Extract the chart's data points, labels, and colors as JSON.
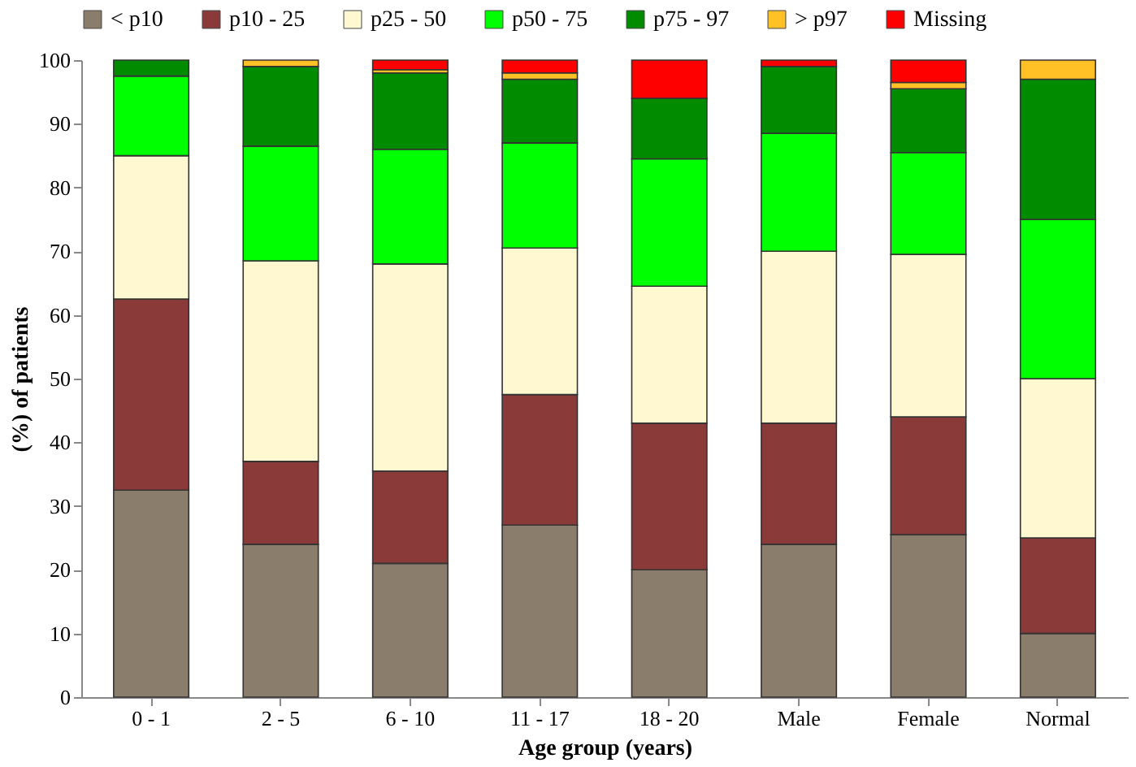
{
  "chart_data": {
    "type": "bar",
    "stacked": true,
    "xlabel": "Age group (years)",
    "ylabel": "(%) of patients",
    "categories": [
      "0 - 1",
      "2 - 5",
      "6 - 10",
      "11 - 17",
      "18 - 20",
      "Male",
      "Female",
      "Normal"
    ],
    "series": [
      {
        "name": "< p10",
        "color": "#8b7d6b",
        "values": [
          32.5,
          24,
          21,
          27,
          20,
          24,
          25.5,
          10
        ]
      },
      {
        "name": "p10 - 25",
        "color": "#8b3a3a",
        "values": [
          30,
          13,
          14.5,
          20.5,
          23,
          19,
          18.5,
          15
        ]
      },
      {
        "name": "p25 - 50",
        "color": "#fff8d0",
        "values": [
          22.5,
          31.5,
          32.5,
          23,
          21.5,
          27,
          25.5,
          25
        ]
      },
      {
        "name": "p50 - 75",
        "color": "#00ff00",
        "values": [
          12.5,
          18,
          18,
          16.5,
          20,
          18.5,
          16,
          25
        ]
      },
      {
        "name": "p75 - 97",
        "color": "#008b00",
        "values": [
          2.5,
          12.5,
          12,
          10,
          9.5,
          10.5,
          10,
          22
        ]
      },
      {
        "name": "> p97",
        "color": "#ffc125",
        "values": [
          null,
          1,
          0.5,
          1,
          null,
          null,
          1,
          3
        ]
      },
      {
        "name": "Missing",
        "color": "#ff0000",
        "values": [
          null,
          null,
          1.5,
          2,
          6,
          1,
          3.5,
          null
        ]
      }
    ],
    "ylim": [
      0,
      100
    ],
    "yticks": [
      0,
      10,
      20,
      30,
      40,
      50,
      60,
      70,
      80,
      90,
      100
    ],
    "grid": false,
    "legend": "top"
  }
}
